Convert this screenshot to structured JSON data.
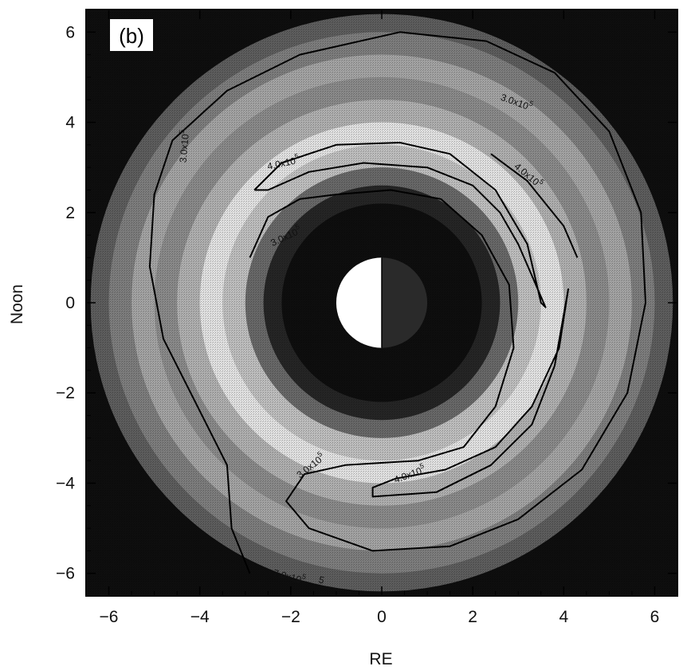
{
  "chart_data": {
    "type": "heatmap",
    "panel_label": "(b)",
    "xlabel": "RE",
    "ylabel": "Noon",
    "xlim": [
      -6.5,
      6.5
    ],
    "ylim": [
      -6.5,
      6.5
    ],
    "xticks": [
      -6,
      -4,
      -2,
      0,
      2,
      4,
      6
    ],
    "yticks": [
      -6,
      -4,
      -2,
      0,
      2,
      4,
      6
    ],
    "xtick_labels": [
      "−6",
      "−4",
      "−2",
      "0",
      "2",
      "4",
      "6"
    ],
    "ytick_labels": [
      "−6",
      "−4",
      "−2",
      "0",
      "2",
      "4",
      "6"
    ],
    "grid": false,
    "domain": {
      "inner_radius_re": 2.2,
      "outer_radius_re": 6.4
    },
    "earth": {
      "radius_re": 1.0,
      "dayside": "left",
      "day_color": "#ffffff",
      "night_color": "#2a2a2a"
    },
    "colors": {
      "background": "#0e0e0e",
      "low": "#1a1a1a",
      "mid": "#8a8a8a",
      "high": "#f2f2f2"
    },
    "shading_bands": [
      {
        "r0": 2.2,
        "r1": 2.6,
        "level": 0.05
      },
      {
        "r0": 2.6,
        "r1": 3.0,
        "level": 0.35
      },
      {
        "r0": 3.0,
        "r1": 3.5,
        "level": 0.75
      },
      {
        "r0": 3.5,
        "r1": 4.0,
        "level": 0.92
      },
      {
        "r0": 4.0,
        "r1": 4.5,
        "level": 0.68
      },
      {
        "r0": 4.5,
        "r1": 5.0,
        "level": 0.5
      },
      {
        "r0": 5.0,
        "r1": 5.5,
        "level": 0.62
      },
      {
        "r0": 5.5,
        "r1": 6.0,
        "level": 0.44
      },
      {
        "r0": 6.0,
        "r1": 6.4,
        "level": 0.3
      }
    ],
    "contours": [
      {
        "level": "3.0x10^5",
        "points": [
          [
            -2.9,
            1.0
          ],
          [
            -2.5,
            1.9
          ],
          [
            -1.8,
            2.3
          ],
          [
            -1.0,
            2.4
          ],
          [
            0.2,
            2.5
          ],
          [
            1.3,
            2.3
          ],
          [
            2.2,
            1.5
          ],
          [
            2.8,
            0.4
          ],
          [
            2.9,
            -1.0
          ],
          [
            2.5,
            -2.3
          ],
          [
            1.8,
            -3.2
          ],
          [
            0.8,
            -3.5
          ],
          [
            -0.8,
            -3.6
          ],
          [
            -1.7,
            -3.8
          ],
          [
            -2.1,
            -4.4
          ],
          [
            -1.6,
            -5.0
          ],
          [
            -0.2,
            -5.5
          ],
          [
            1.5,
            -5.4
          ],
          [
            3.0,
            -4.8
          ],
          [
            4.4,
            -3.7
          ],
          [
            5.4,
            -2.0
          ],
          [
            5.8,
            0.0
          ],
          [
            5.7,
            2.0
          ],
          [
            5.0,
            3.8
          ],
          [
            3.8,
            5.1
          ],
          [
            2.3,
            5.8
          ],
          [
            0.4,
            6.0
          ],
          [
            -1.8,
            5.5
          ],
          [
            -3.4,
            4.7
          ],
          [
            -4.6,
            3.6
          ],
          [
            -5.0,
            2.4
          ],
          [
            -5.1,
            0.8
          ],
          [
            -4.8,
            -0.8
          ],
          [
            -4.1,
            -2.2
          ],
          [
            -3.4,
            -3.6
          ],
          [
            -3.3,
            -5.0
          ],
          [
            -2.9,
            -6.0
          ]
        ]
      },
      {
        "level": "4.0x10^5",
        "points": [
          [
            -2.8,
            2.5
          ],
          [
            -2.2,
            3.1
          ],
          [
            -1.0,
            3.5
          ],
          [
            0.4,
            3.55
          ],
          [
            1.5,
            3.3
          ],
          [
            2.5,
            2.5
          ],
          [
            3.2,
            1.3
          ],
          [
            3.5,
            0.0
          ],
          [
            3.6,
            -0.1
          ],
          [
            3.3,
            0.6
          ],
          [
            3.0,
            1.3
          ],
          [
            2.6,
            2.0
          ],
          [
            2.0,
            2.6
          ],
          [
            1.0,
            3.0
          ],
          [
            -0.4,
            3.1
          ],
          [
            -1.6,
            2.9
          ],
          [
            -2.5,
            2.5
          ],
          [
            -2.8,
            2.5
          ]
        ]
      },
      {
        "level": "4.0x10^5",
        "points": [
          [
            2.4,
            3.3
          ],
          [
            3.2,
            2.7
          ],
          [
            4.0,
            1.7
          ],
          [
            4.3,
            1.0
          ]
        ]
      },
      {
        "level": "4.0x10^5",
        "points": [
          [
            0.3,
            -3.9
          ],
          [
            1.4,
            -3.7
          ],
          [
            2.5,
            -3.2
          ],
          [
            3.3,
            -2.3
          ],
          [
            3.9,
            -1.0
          ],
          [
            4.1,
            0.3
          ],
          [
            3.8,
            -1.4
          ],
          [
            3.3,
            -2.7
          ],
          [
            2.4,
            -3.6
          ],
          [
            1.2,
            -4.2
          ],
          [
            -0.2,
            -4.3
          ],
          [
            -0.2,
            -4.1
          ],
          [
            0.3,
            -3.9
          ]
        ]
      }
    ],
    "contour_labels": [
      {
        "text": "3.0x10",
        "sup": "5",
        "x": 2.6,
        "y": 4.5,
        "rotate": 20
      },
      {
        "text": "4.0x10",
        "sup": "5",
        "x": -2.5,
        "y": 2.95,
        "rotate": -12
      },
      {
        "text": "3.0x10",
        "sup": "5",
        "x": -2.4,
        "y": 1.25,
        "rotate": -25
      },
      {
        "text": "4.0x10",
        "sup": "5",
        "x": 2.9,
        "y": 3.0,
        "rotate": 40
      },
      {
        "text": "4.0x10",
        "sup": "5",
        "x": 0.3,
        "y": -4.0,
        "rotate": -20
      },
      {
        "text": "3.0x10",
        "sup": "5",
        "x": -1.8,
        "y": -3.9,
        "rotate": -38
      },
      {
        "text": "3.0x10",
        "sup": "5",
        "x": -4.3,
        "y": 3.1,
        "rotate": -85
      },
      {
        "text": "7.0x10",
        "sup": "5",
        "x": -2.4,
        "y": -6.05,
        "rotate": 15
      },
      {
        "text": "5",
        "sup": "",
        "x": -1.4,
        "y": -6.2,
        "rotate": 15
      }
    ]
  }
}
